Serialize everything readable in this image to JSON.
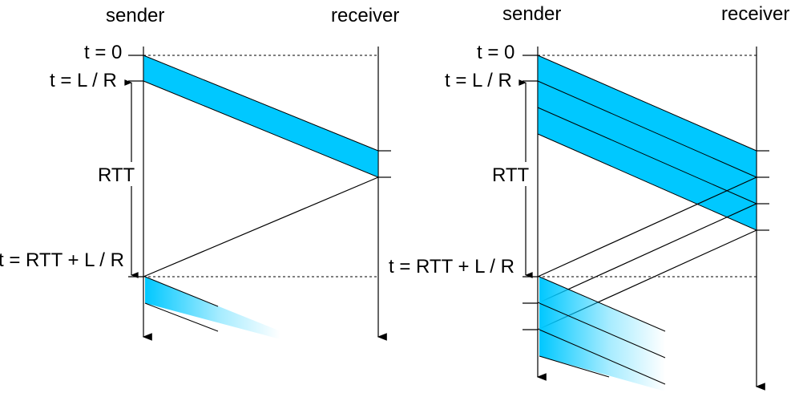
{
  "left": {
    "sender_label": "sender",
    "receiver_label": "receiver",
    "t0_label": "t = 0",
    "tlr_label": "t = L / R",
    "rtt_label": "RTT",
    "trtt_label": "t = RTT + L / R"
  },
  "right": {
    "sender_label": "sender",
    "receiver_label": "receiver",
    "t0_label": "t = 0",
    "tlr_label": "t = L / R",
    "rtt_label": "RTT",
    "trtt_label": "t = RTT + L / R"
  },
  "colors": {
    "packet": "#00c8ff",
    "line": "#000000"
  }
}
